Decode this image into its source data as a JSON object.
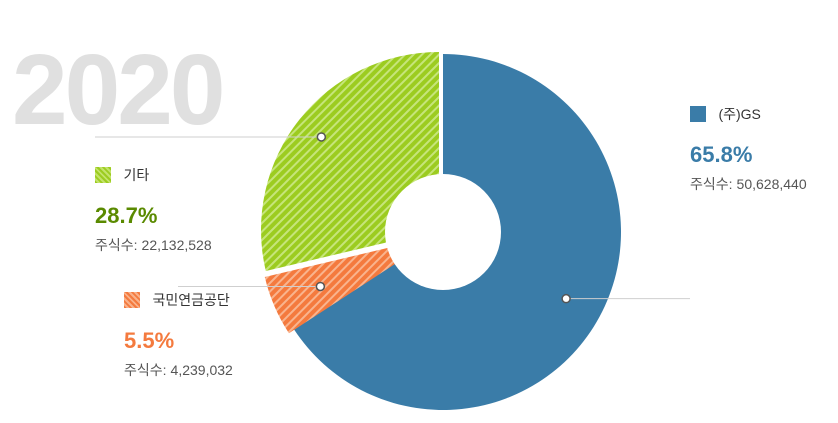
{
  "year": "2020",
  "colors": {
    "gs": "#3a7ca8",
    "other": "#9ccc20",
    "nps": "#f47a3e"
  },
  "legends": {
    "gs": {
      "name": "(주)GS",
      "pct": "65.8%",
      "shares_label": "주식수:",
      "shares": "50,628,440"
    },
    "other": {
      "name": "기타",
      "pct": "28.7%",
      "shares_label": "주식수:",
      "shares": "22,132,528"
    },
    "nps": {
      "name": "국민연금공단",
      "pct": "5.5%",
      "shares_label": "주식수:",
      "shares": "4,239,032"
    }
  },
  "chart_data": {
    "type": "pie",
    "categories": [
      "(주)GS",
      "국민연금공단",
      "기타"
    ],
    "values": [
      65.8,
      5.5,
      28.7
    ],
    "shares": [
      50628440,
      4239032,
      22132528
    ],
    "title": "2020",
    "xlabel": "",
    "ylabel": ""
  }
}
